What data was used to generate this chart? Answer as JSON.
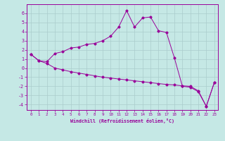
{
  "xlabel": "Windchill (Refroidissement éolien,°C)",
  "background_color": "#c5e8e5",
  "line_color": "#990099",
  "grid_color": "#aacccc",
  "xlim_min": -0.5,
  "xlim_max": 23.5,
  "ylim_min": -4.6,
  "ylim_max": 7.0,
  "xticks": [
    0,
    1,
    2,
    3,
    4,
    5,
    6,
    7,
    8,
    9,
    10,
    11,
    12,
    13,
    14,
    15,
    16,
    17,
    18,
    19,
    20,
    21,
    22,
    23
  ],
  "yticks": [
    -4,
    -3,
    -2,
    -1,
    0,
    1,
    2,
    3,
    4,
    5,
    6
  ],
  "line1_x": [
    0,
    1,
    2,
    3,
    4,
    5,
    6,
    7,
    8,
    9,
    10,
    11,
    12,
    13,
    14,
    15,
    16,
    17,
    18,
    19,
    20,
    21,
    22,
    23
  ],
  "line1_y": [
    1.5,
    0.8,
    0.7,
    1.6,
    1.8,
    2.2,
    2.3,
    2.6,
    2.7,
    3.0,
    3.5,
    4.5,
    6.3,
    4.5,
    5.5,
    5.6,
    4.1,
    3.9,
    1.1,
    -2.0,
    -2.1,
    -2.6,
    -4.2,
    -1.6
  ],
  "line2_x": [
    0,
    1,
    2,
    3,
    4,
    5,
    6,
    7,
    8,
    9,
    10,
    11,
    12,
    13,
    14,
    15,
    16,
    17,
    18,
    19,
    20,
    21,
    22,
    23
  ],
  "line2_y": [
    1.5,
    0.8,
    0.5,
    0.0,
    -0.2,
    -0.4,
    -0.55,
    -0.7,
    -0.85,
    -1.0,
    -1.1,
    -1.2,
    -1.3,
    -1.4,
    -1.5,
    -1.6,
    -1.7,
    -1.8,
    -1.85,
    -1.95,
    -2.0,
    -2.5,
    -4.2,
    -1.6
  ]
}
